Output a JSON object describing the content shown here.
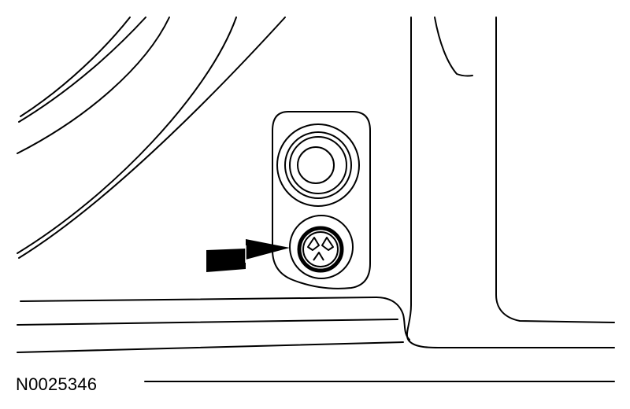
{
  "figure": {
    "reference_id": "N0025346",
    "line_color": "#000000",
    "background_color": "#ffffff",
    "callout": {
      "type": "arrow",
      "target": "screw",
      "icon": "arrow-right-icon"
    },
    "parts": [
      {
        "name": "mounting-bracket"
      },
      {
        "name": "grommet"
      },
      {
        "name": "screw",
        "head": "phillips"
      }
    ]
  }
}
